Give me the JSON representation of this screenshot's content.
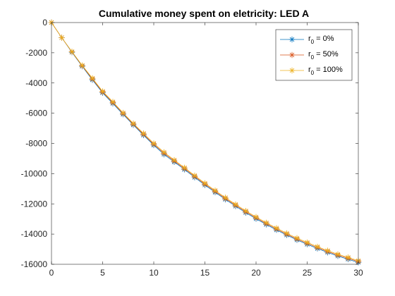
{
  "chart_data": {
    "type": "line",
    "title": "Cumulative money spent on eletricity: LED A",
    "xlabel": "",
    "ylabel": "",
    "xlim": [
      0,
      30
    ],
    "ylim": [
      -16000,
      0
    ],
    "x_ticks": [
      0,
      5,
      10,
      15,
      20,
      25,
      30
    ],
    "y_ticks": [
      0,
      -2000,
      -4000,
      -6000,
      -8000,
      -10000,
      -12000,
      -14000,
      -16000
    ],
    "grid": false,
    "legend_position": "top-right",
    "x": [
      0,
      1,
      2,
      3,
      4,
      5,
      6,
      7,
      8,
      9,
      10,
      11,
      12,
      13,
      14,
      15,
      16,
      17,
      18,
      19,
      20,
      21,
      22,
      23,
      24,
      25,
      26,
      27,
      28,
      29,
      30
    ],
    "series": [
      {
        "name_main": "r",
        "name_sub": "0",
        "name_rest": " = 0%",
        "color": "#0072BD",
        "marker": "asterisk",
        "values": [
          0,
          -1000,
          -1965,
          -2895,
          -3790,
          -4650,
          -5355,
          -6075,
          -6775,
          -7455,
          -8115,
          -8725,
          -9225,
          -9725,
          -10245,
          -10755,
          -11235,
          -11705,
          -12155,
          -12585,
          -12985,
          -13365,
          -13725,
          -14065,
          -14385,
          -14675,
          -14955,
          -15215,
          -15455,
          -15665,
          -15875
        ]
      },
      {
        "name_main": "r",
        "name_sub": "0",
        "name_rest": " = 50%",
        "color": "#D95319",
        "marker": "asterisk",
        "values": [
          0,
          -1000,
          -1945,
          -2865,
          -3735,
          -4600,
          -5300,
          -6025,
          -6725,
          -7395,
          -8055,
          -8650,
          -9160,
          -9665,
          -10185,
          -10695,
          -11175,
          -11645,
          -12095,
          -12525,
          -12925,
          -13305,
          -13665,
          -14005,
          -14325,
          -14615,
          -14895,
          -15155,
          -15395,
          -15605,
          -15820
        ]
      },
      {
        "name_main": "r",
        "name_sub": "0",
        "name_rest": " = 100%",
        "color": "#EDB120",
        "marker": "asterisk",
        "values": [
          0,
          -1000,
          -1925,
          -2835,
          -3685,
          -4550,
          -5245,
          -5975,
          -6675,
          -7335,
          -7995,
          -8580,
          -9100,
          -9605,
          -10125,
          -10635,
          -11115,
          -11585,
          -12035,
          -12465,
          -12865,
          -13245,
          -13605,
          -13945,
          -14265,
          -14555,
          -14835,
          -15095,
          -15335,
          -15545,
          -15760
        ]
      }
    ]
  }
}
